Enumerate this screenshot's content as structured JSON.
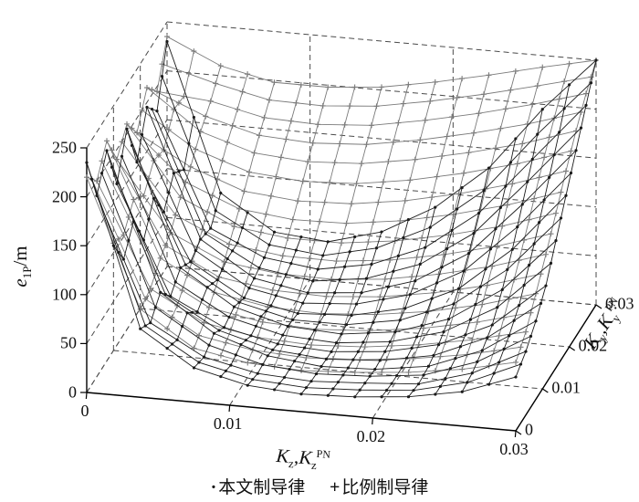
{
  "chart_data": {
    "type": "mesh3d",
    "title": "",
    "background": "#ffffff",
    "grid": {
      "style": "dashed",
      "color": "#4a4a4a"
    },
    "axes": {
      "x": {
        "ticks": [
          0,
          0.01,
          0.02,
          0.03
        ],
        "range": [
          0,
          0.03
        ],
        "label": {
          "v1": "K",
          "s1": "z",
          "sep": ",",
          "v2": "K",
          "s2": "z",
          "sup2": "PN"
        }
      },
      "y": {
        "ticks": [
          0,
          0.01,
          0.02,
          0.03
        ],
        "range": [
          0,
          0.03
        ],
        "label": {
          "v1": "K",
          "s1": "y",
          "sep": ",",
          "v2": "K",
          "s2": "y",
          "sup2": "PN"
        }
      },
      "z": {
        "ticks": [
          0,
          50,
          100,
          150,
          200,
          250
        ],
        "range": [
          0,
          250
        ],
        "label": {
          "v1": "e",
          "s1": "1P",
          "suffix": "/m"
        }
      }
    },
    "kz_values": [
      0,
      0.00375,
      0.0075,
      0.01125,
      0.015,
      0.01875,
      0.0225,
      0.02625,
      0.03
    ],
    "ky_values": [
      0,
      0.00375,
      0.0075,
      0.01125,
      0.015,
      0.01875,
      0.0225,
      0.02625,
      0.03
    ],
    "series": [
      {
        "name": "比例制导律",
        "marker": "plus",
        "color": "#7a7a7a",
        "z": [
          [
            220,
            90,
            55,
            45,
            42,
            45,
            50,
            58,
            70
          ],
          [
            200,
            95,
            65,
            55,
            52,
            55,
            62,
            72,
            85
          ],
          [
            225,
            110,
            80,
            70,
            68,
            72,
            80,
            92,
            108
          ],
          [
            190,
            120,
            95,
            88,
            87,
            92,
            102,
            115,
            132
          ],
          [
            210,
            140,
            115,
            108,
            108,
            115,
            126,
            140,
            158
          ],
          [
            185,
            155,
            135,
            130,
            132,
            140,
            152,
            167,
            185
          ],
          [
            215,
            175,
            158,
            154,
            157,
            166,
            178,
            192,
            210
          ],
          [
            195,
            190,
            178,
            176,
            180,
            190,
            202,
            216,
            232
          ],
          [
            235,
            210,
            198,
            198,
            203,
            213,
            225,
            238,
            250
          ]
        ]
      },
      {
        "name": "本文制导律",
        "marker": "dot",
        "color": "#1b1b1b",
        "z": [
          [
            235,
            70,
            35,
            22,
            18,
            20,
            25,
            35,
            55
          ],
          [
            185,
            60,
            30,
            18,
            15,
            18,
            22,
            38,
            65
          ],
          [
            215,
            75,
            38,
            20,
            14,
            16,
            24,
            45,
            80
          ],
          [
            165,
            55,
            28,
            16,
            13,
            18,
            30,
            55,
            100
          ],
          [
            205,
            68,
            33,
            18,
            15,
            22,
            40,
            75,
            130
          ],
          [
            155,
            58,
            26,
            15,
            18,
            30,
            55,
            100,
            160
          ],
          [
            195,
            65,
            30,
            20,
            25,
            42,
            75,
            130,
            190
          ],
          [
            175,
            60,
            35,
            28,
            38,
            60,
            100,
            160,
            220
          ],
          [
            230,
            80,
            45,
            40,
            55,
            85,
            130,
            195,
            250
          ]
        ]
      }
    ],
    "legend": {
      "position": "bottom",
      "entries": [
        {
          "marker": "·",
          "label": "本文制导律"
        },
        {
          "marker": "+",
          "label": "比例制导律"
        }
      ]
    }
  }
}
